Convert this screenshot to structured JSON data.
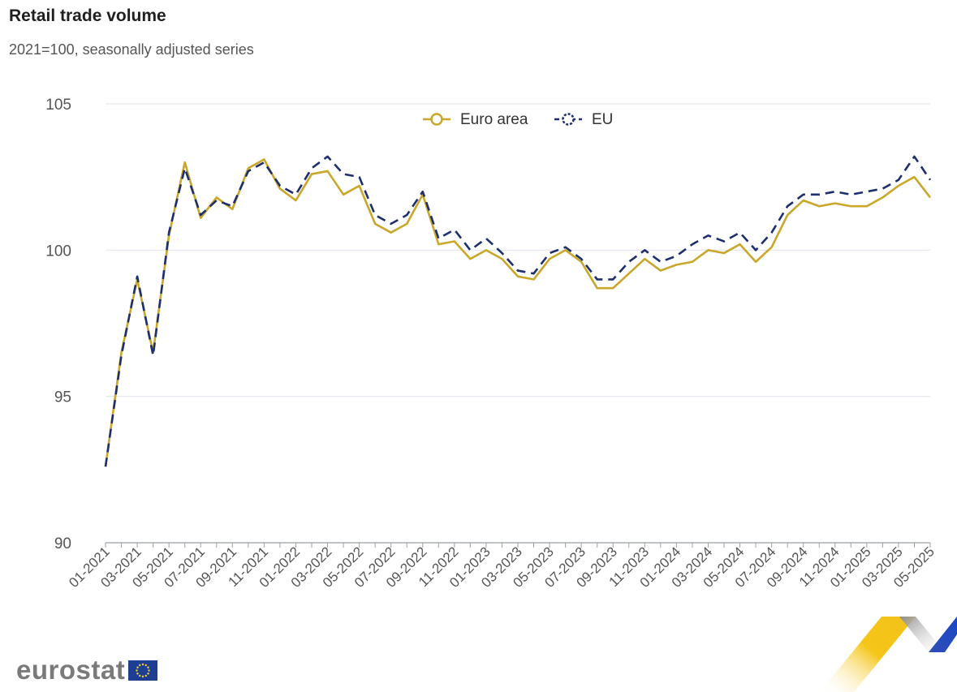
{
  "title": "Retail trade volume",
  "subtitle": "2021=100, seasonally adjusted series",
  "logo": {
    "text": "eurostat",
    "flag_icon": "eu-flag-icon"
  },
  "colors": {
    "euro_area": "#c9a72a",
    "eu": "#1e2f6e",
    "grid": "#e3e6ee",
    "axis": "#9aa0a8"
  },
  "chart_data": {
    "type": "line",
    "title": "Retail trade volume",
    "subtitle": "2021=100, seasonally adjusted series",
    "xlabel": "",
    "ylabel": "",
    "ylim": [
      90,
      105
    ],
    "yticks": [
      "90",
      "95",
      "100",
      "105"
    ],
    "grid": true,
    "legend_position": "top-center",
    "categories": [
      "01-2021",
      "02-2021",
      "03-2021",
      "04-2021",
      "05-2021",
      "06-2021",
      "07-2021",
      "08-2021",
      "09-2021",
      "10-2021",
      "11-2021",
      "12-2021",
      "01-2022",
      "02-2022",
      "03-2022",
      "04-2022",
      "05-2022",
      "06-2022",
      "07-2022",
      "08-2022",
      "09-2022",
      "10-2022",
      "11-2022",
      "12-2022",
      "01-2023",
      "02-2023",
      "03-2023",
      "04-2023",
      "05-2023",
      "06-2023",
      "07-2023",
      "08-2023",
      "09-2023",
      "10-2023",
      "11-2023",
      "12-2023",
      "01-2024",
      "02-2024",
      "03-2024",
      "04-2024",
      "05-2024",
      "06-2024",
      "07-2024",
      "08-2024",
      "09-2024",
      "10-2024",
      "11-2024",
      "12-2024",
      "01-2025",
      "02-2025",
      "03-2025",
      "04-2025",
      "05-2025"
    ],
    "xtick_labels": [
      "01-2021",
      "03-2021",
      "05-2021",
      "07-2021",
      "09-2021",
      "11-2021",
      "01-2022",
      "03-2022",
      "05-2022",
      "07-2022",
      "09-2022",
      "11-2022",
      "01-2023",
      "03-2023",
      "05-2023",
      "07-2023",
      "09-2023",
      "11-2023",
      "01-2024",
      "03-2024",
      "05-2024",
      "07-2024",
      "09-2024",
      "11-2024",
      "01-2025",
      "03-2025",
      "05-2025"
    ],
    "series": [
      {
        "name": "Euro area",
        "color": "#c9a72a",
        "dash": "solid",
        "values": [
          92.6,
          96.5,
          99.0,
          96.5,
          100.5,
          103.0,
          101.1,
          101.8,
          101.4,
          102.8,
          103.1,
          102.1,
          101.7,
          102.6,
          102.7,
          101.9,
          102.2,
          100.9,
          100.6,
          100.9,
          101.9,
          100.2,
          100.3,
          99.7,
          100.0,
          99.7,
          99.1,
          99.0,
          99.7,
          100.0,
          99.6,
          98.7,
          98.7,
          99.2,
          99.7,
          99.3,
          99.5,
          99.6,
          100.0,
          99.9,
          100.2,
          99.6,
          100.1,
          101.2,
          101.7,
          101.5,
          101.6,
          101.5,
          101.5,
          101.8,
          102.2,
          102.5,
          101.8
        ]
      },
      {
        "name": "EU",
        "color": "#1e2f6e",
        "dash": "dashed",
        "values": [
          92.6,
          96.4,
          99.1,
          96.4,
          100.6,
          102.8,
          101.2,
          101.7,
          101.5,
          102.7,
          103.0,
          102.2,
          101.9,
          102.8,
          103.2,
          102.6,
          102.5,
          101.2,
          100.9,
          101.2,
          102.0,
          100.4,
          100.7,
          100.0,
          100.4,
          99.9,
          99.3,
          99.2,
          99.9,
          100.1,
          99.7,
          99.0,
          99.0,
          99.6,
          100.0,
          99.6,
          99.8,
          100.2,
          100.5,
          100.3,
          100.6,
          100.0,
          100.6,
          101.5,
          101.9,
          101.9,
          102.0,
          101.9,
          102.0,
          102.1,
          102.4,
          103.2,
          102.4
        ]
      }
    ]
  }
}
